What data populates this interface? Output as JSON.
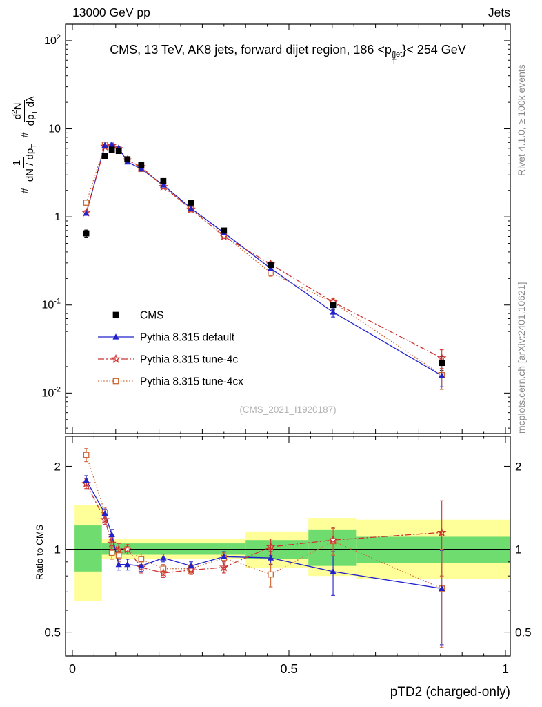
{
  "header": {
    "left": "13000 GeV pp",
    "right": "Jets"
  },
  "title": {
    "pre": "CMS, 13 TeV, AK8 jets, forward dijet region, 186 <p",
    "sup": "{jet",
    "sub": "T",
    "post": "}< 254 GeV"
  },
  "ylabel_main": {
    "hash1": "#",
    "frac1_num": "1",
    "frac1_den_a": "dN / dp",
    "frac1_den_sub": "T",
    "hash2": "#",
    "frac2_num_a": "d",
    "frac2_num_sup": "2",
    "frac2_num_b": "N",
    "frac2_den_a": "dp",
    "frac2_den_sub": "T",
    "frac2_den_b": " dλ"
  },
  "ratio_label": "Ratio to CMS",
  "xlabel": "pTD2 (charged-only)",
  "watermark": "(CMS_2021_I1920187)",
  "side_notes": {
    "top_right": "Rivet 4.1.0, ≥ 100k events",
    "bottom_right": "mcplots.cern.ch [arXiv:2401.10621]"
  },
  "legend": [
    {
      "id": "cms",
      "label": "CMS",
      "marker": "square",
      "fill": true,
      "color": "#000000",
      "line": "none"
    },
    {
      "id": "pythia_default",
      "label": "Pythia 8.315 default",
      "marker": "triangle",
      "fill": true,
      "color": "#2222cc",
      "line": "solid"
    },
    {
      "id": "pythia_4c",
      "label": "Pythia 8.315 tune-4c",
      "marker": "star",
      "fill": false,
      "color": "#cc3333",
      "line": "dashdot"
    },
    {
      "id": "pythia_4cx",
      "label": "Pythia 8.315 tune-4cx",
      "marker": "square",
      "fill": false,
      "color": "#cc6633",
      "line": "dotted"
    }
  ],
  "colors": {
    "cms": "#000000",
    "default_blue": "#2222cc",
    "tune4c_red": "#cc3333",
    "tune4cx_orange": "#cc6633",
    "band_yellow": "#ffff99",
    "band_green": "#6fdc6f",
    "gray_text": "#8a8a8a",
    "watermark": "#b3b3b3"
  },
  "chart_data": {
    "type": "line",
    "title": "CMS, 13 TeV, AK8 jets, forward dijet region, 186 <p_T^{jet}< 254 GeV",
    "xlabel": "pTD2 (charged-only)",
    "ylabel": "# 1/(dN/dp_T) d²N/(dp_T dλ)",
    "ratio_ylabel": "Ratio to CMS",
    "legend_position": "middle-left",
    "grid": false,
    "xlim": [
      0,
      1
    ],
    "xticks": [
      {
        "v": 0,
        "label": "0"
      },
      {
        "v": 0.5,
        "label": "0.5"
      },
      {
        "v": 1,
        "label": "1"
      }
    ],
    "x": [
      0.032,
      0.075,
      0.091,
      0.107,
      0.127,
      0.159,
      0.21,
      0.274,
      0.35,
      0.458,
      0.602,
      0.853
    ],
    "main": {
      "ylog": true,
      "ylim": [
        0.00347,
        154
      ],
      "yticks": [
        {
          "v": 100,
          "mant": "10",
          "exp": "2"
        },
        {
          "v": 10,
          "mant": "10",
          "exp": ""
        },
        {
          "v": 1,
          "mant": "1",
          "exp": ""
        },
        {
          "v": 0.1,
          "mant": "10",
          "exp": "-1"
        },
        {
          "v": 0.01,
          "mant": "10",
          "exp": "-2"
        }
      ],
      "series": [
        {
          "id": "cms",
          "name": "CMS",
          "color": "#000000",
          "marker": "square",
          "fill": true,
          "line": "none",
          "values": [
            0.65,
            4.9,
            5.8,
            5.6,
            4.5,
            3.9,
            2.55,
            1.45,
            0.7,
            0.285,
            0.1,
            0.022
          ],
          "yerr": [
            0.06,
            0.25,
            0.25,
            0.25,
            0.2,
            0.15,
            0.1,
            0.06,
            0.035,
            0.02,
            0.012,
            0.004
          ]
        },
        {
          "id": "pythia_default",
          "name": "Pythia 8.315 default",
          "color": "#2222cc",
          "marker": "triangle",
          "fill": true,
          "line": "solid",
          "values": [
            1.1,
            6.5,
            6.6,
            6.1,
            4.2,
            3.5,
            2.3,
            1.25,
            0.66,
            0.26,
            0.083,
            0.0158
          ],
          "yerr": [
            0.06,
            0.3,
            0.3,
            0.25,
            0.2,
            0.15,
            0.1,
            0.05,
            0.03,
            0.015,
            0.01,
            0.004
          ]
        },
        {
          "id": "pythia_4c",
          "name": "Pythia 8.315 tune-4c",
          "color": "#cc3333",
          "marker": "star",
          "fill": false,
          "line": "dashdot",
          "values": [
            1.12,
            6.3,
            6.4,
            5.9,
            4.4,
            3.7,
            2.2,
            1.22,
            0.6,
            0.29,
            0.108,
            0.025
          ],
          "yerr": [
            0.06,
            0.3,
            0.3,
            0.25,
            0.2,
            0.15,
            0.1,
            0.05,
            0.03,
            0.02,
            0.012,
            0.006
          ]
        },
        {
          "id": "pythia_4cx",
          "name": "Pythia 8.315 tune-4cx",
          "color": "#cc6633",
          "marker": "square",
          "fill": false,
          "line": "dotted",
          "values": [
            1.45,
            6.6,
            6.2,
            5.8,
            4.5,
            3.5,
            2.25,
            1.22,
            0.62,
            0.232,
            0.107,
            0.016
          ],
          "yerr": [
            0.08,
            0.3,
            0.3,
            0.25,
            0.2,
            0.15,
            0.1,
            0.05,
            0.03,
            0.02,
            0.012,
            0.005
          ]
        }
      ]
    },
    "ratio": {
      "ylog": true,
      "ylim": [
        0.41,
        2.57
      ],
      "yticks": [
        {
          "v": 0.5,
          "label": "0.5"
        },
        {
          "v": 1,
          "label": "1"
        },
        {
          "v": 2,
          "label": "2"
        }
      ],
      "yminor": [
        0.6,
        0.7,
        0.8,
        0.9
      ],
      "reference_line": 1,
      "bands": {
        "yellow": [
          [
            0.005,
            0.068,
            0.65,
            1.45
          ],
          [
            0.068,
            0.4,
            0.92,
            1.09
          ],
          [
            0.4,
            0.545,
            0.855,
            1.16
          ],
          [
            0.545,
            0.655,
            0.8,
            1.3
          ],
          [
            0.655,
            1.012,
            0.78,
            1.28
          ]
        ],
        "green": [
          [
            0.005,
            0.068,
            0.83,
            1.22
          ],
          [
            0.068,
            0.4,
            0.955,
            1.05
          ],
          [
            0.4,
            0.545,
            0.92,
            1.08
          ],
          [
            0.545,
            0.655,
            0.87,
            1.18
          ],
          [
            0.655,
            1.012,
            0.89,
            1.11
          ]
        ]
      },
      "series": [
        {
          "id": "pythia_default",
          "name": "Pythia 8.315 default",
          "color": "#2222cc",
          "marker": "triangle",
          "fill": true,
          "line": "solid",
          "values": [
            1.78,
            1.35,
            1.13,
            0.88,
            0.88,
            0.87,
            0.93,
            0.87,
            0.94,
            0.93,
            0.83,
            0.72
          ],
          "yerr": [
            0.07,
            0.05,
            0.05,
            0.04,
            0.04,
            0.04,
            0.03,
            0.03,
            0.04,
            0.05,
            0.15,
            0.27
          ]
        },
        {
          "id": "pythia_4c",
          "name": "Pythia 8.315 tune-4c",
          "color": "#cc3333",
          "marker": "star",
          "fill": false,
          "line": "dashdot",
          "values": [
            1.73,
            1.28,
            1.05,
            1.0,
            1.0,
            0.86,
            0.82,
            0.84,
            0.86,
            1.02,
            1.08,
            1.15
          ],
          "yerr": [
            0.07,
            0.05,
            0.05,
            0.05,
            0.04,
            0.04,
            0.03,
            0.03,
            0.04,
            0.07,
            0.12,
            0.35
          ]
        },
        {
          "id": "pythia_4cx",
          "name": "Pythia 8.315 tune-4cx",
          "color": "#cc6633",
          "marker": "square",
          "fill": false,
          "line": "dotted",
          "values": [
            2.2,
            1.36,
            0.97,
            0.95,
            1.0,
            0.92,
            0.85,
            0.85,
            0.93,
            0.81,
            1.07,
            0.72
          ],
          "yerr": [
            0.12,
            0.06,
            0.05,
            0.05,
            0.04,
            0.04,
            0.03,
            0.03,
            0.04,
            0.08,
            0.12,
            0.28
          ]
        }
      ]
    }
  }
}
